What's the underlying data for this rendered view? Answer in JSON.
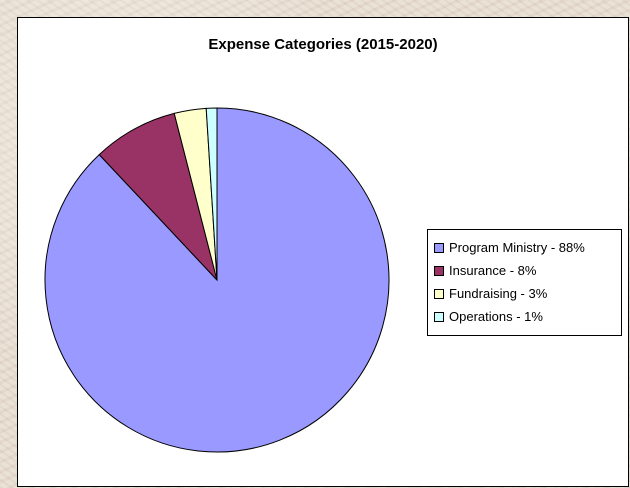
{
  "chart_data": {
    "type": "pie",
    "title": "Expense Categories (2015-2020)",
    "slices": [
      {
        "label": "Program Ministry - 88%",
        "name": "Program Ministry",
        "value": 88,
        "color": "#9999ff"
      },
      {
        "label": "Insurance - 8%",
        "name": "Insurance",
        "value": 8,
        "color": "#993366"
      },
      {
        "label": "Fundraising - 3%",
        "name": "Fundraising",
        "value": 3,
        "color": "#ffffcc"
      },
      {
        "label": "Operations - 1%",
        "name": "Operations",
        "value": 1,
        "color": "#ccffff"
      }
    ],
    "start_angle": "12 o'clock, clockwise",
    "legend_position": "right"
  }
}
